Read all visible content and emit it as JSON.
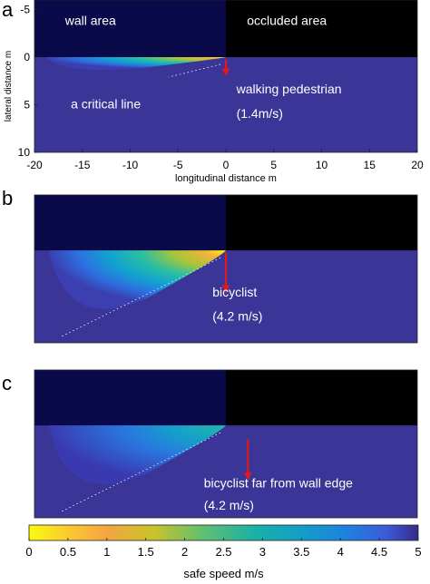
{
  "chart_data": {
    "type": "heatmap",
    "colormap": "parula",
    "colors": {
      "background_value_color": "#3a3596",
      "wall_color": "#0a0a4a",
      "occluded_color": "#000000",
      "arrow_color": "#e01a1a"
    },
    "panels": [
      {
        "label": "a",
        "x_range": [
          -20,
          20
        ],
        "y_range": [
          -6,
          10
        ],
        "wall_edge_x": 0,
        "wall_line_y": 0,
        "x_ticks": [
          -20,
          -15,
          -10,
          -5,
          0,
          5,
          10,
          15,
          20
        ],
        "y_ticks": [
          -5,
          0,
          5,
          10
        ],
        "xlabel": "longitudinal distance m",
        "ylabel": "lateral distance m",
        "region_labels": {
          "wall": "wall area",
          "occluded": "occluded area"
        },
        "annotations": [
          "a critical line",
          "walking pedestrian",
          "(1.4m/s)"
        ],
        "agent_speed": 1.4,
        "reach_x": -18.8,
        "reach_y": 2.0,
        "arrow": {
          "x": 0,
          "y_from": 0.2,
          "y_to": 1.6
        }
      },
      {
        "label": "b",
        "x_range": [
          -20,
          20
        ],
        "y_range": [
          -6,
          10
        ],
        "wall_edge_x": 0,
        "wall_line_y": 0,
        "annotations": [
          "bicyclist",
          "(4.2 m/s)"
        ],
        "agent_speed": 4.2,
        "reach_x": -18.5,
        "reach_y": 9.5,
        "arrow": {
          "x": 0,
          "y_from": 0.2,
          "y_to": 4.2
        }
      },
      {
        "label": "c",
        "x_range": [
          -20,
          20
        ],
        "y_range": [
          -6,
          10
        ],
        "wall_edge_x": 0,
        "wall_line_y": 0,
        "annotations": [
          "bicyclist far from wall edge",
          "(4.2 m/s)"
        ],
        "agent_speed": 4.2,
        "reach_x": -18.5,
        "reach_y": 9.5,
        "arrow": {
          "x": 2.3,
          "y_from": 1.5,
          "y_to": 5.5
        }
      }
    ],
    "colorbar": {
      "range": [
        0,
        5
      ],
      "ticks": [
        0,
        0.5,
        1,
        1.5,
        2,
        2.5,
        3,
        3.5,
        4,
        4.5,
        5
      ],
      "label": "safe speed m/s"
    }
  }
}
